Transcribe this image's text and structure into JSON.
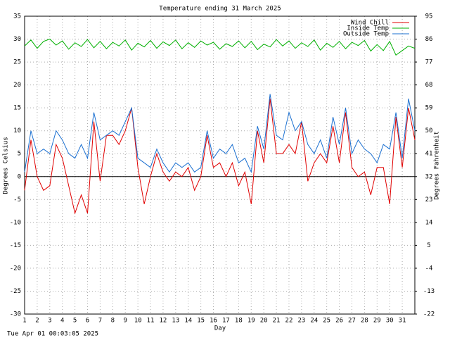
{
  "chart_data": {
    "type": "line",
    "title": "Temperature ending 31 March 2025",
    "x_label": "Day",
    "y_label": "Degrees Celsius",
    "y2_label": "Degrees Fahrenheit",
    "footer": "Tue Apr 01 00:03:05 2025",
    "x": [
      1,
      1.5,
      2,
      2.5,
      3,
      3.5,
      4,
      4.5,
      5,
      5.5,
      6,
      6.5,
      7,
      7.5,
      8,
      8.5,
      9,
      9.5,
      10,
      10.5,
      11,
      11.5,
      12,
      12.5,
      13,
      13.5,
      14,
      14.5,
      15,
      15.5,
      16,
      16.5,
      17,
      17.5,
      18,
      18.5,
      19,
      19.5,
      20,
      20.5,
      21,
      21.5,
      22,
      22.5,
      23,
      23.5,
      24,
      24.5,
      25,
      25.5,
      26,
      26.5,
      27,
      27.5,
      28,
      28.5,
      29,
      29.5,
      30,
      30.5,
      31,
      31.5,
      32
    ],
    "series": [
      {
        "name": "Wind Chill",
        "color": "#e00000",
        "values": [
          -3,
          8,
          0,
          -3,
          -2,
          7,
          4,
          -2,
          -8,
          -4,
          -8,
          12,
          -1,
          9,
          9,
          7,
          10,
          15,
          2,
          -6,
          0,
          5,
          1,
          -1,
          1,
          0,
          2,
          -3,
          0,
          9,
          2,
          3,
          0,
          3,
          -2,
          1,
          -6,
          10,
          3,
          17,
          5,
          5,
          7,
          5,
          12,
          -1,
          3,
          5,
          3,
          11,
          3,
          14,
          2,
          0,
          1,
          -4,
          2,
          2,
          -6,
          13,
          2,
          15,
          8
        ]
      },
      {
        "name": "Inside Temp",
        "color": "#00b000",
        "values": [
          28.5,
          29.8,
          28,
          29.5,
          30,
          28.7,
          29.6,
          27.8,
          29.2,
          28.4,
          29.9,
          28.1,
          29.5,
          27.9,
          29.3,
          28.5,
          29.8,
          27.6,
          29.1,
          28.3,
          29.7,
          28,
          29.4,
          28.6,
          29.8,
          27.9,
          29.2,
          28.2,
          29.6,
          28.7,
          29.3,
          27.8,
          29,
          28.4,
          29.6,
          28.1,
          29.5,
          27.7,
          28.9,
          28.3,
          29.9,
          28.5,
          29.6,
          28,
          29.2,
          28.4,
          29.8,
          27.6,
          29.1,
          28.2,
          29.5,
          27.9,
          29.3,
          28.6,
          29.7,
          27.4,
          28.8,
          27.5,
          29.5,
          26.5,
          27.5,
          28.5,
          28
        ]
      },
      {
        "name": "Outside Temp",
        "color": "#1a6fd0",
        "values": [
          1,
          10,
          5,
          6,
          5,
          10,
          8,
          5,
          4,
          7,
          4,
          14,
          8,
          9,
          10,
          9,
          12,
          15,
          4,
          3,
          2,
          6,
          3,
          1,
          3,
          2,
          3,
          1,
          2,
          10,
          4,
          6,
          5,
          7,
          3,
          4,
          1,
          11,
          6,
          18,
          9,
          8,
          14,
          10,
          12,
          7,
          5,
          8,
          4,
          13,
          7,
          15,
          5,
          8,
          6,
          5,
          3,
          7,
          6,
          14,
          4,
          17,
          10
        ]
      }
    ],
    "xlim": [
      1,
      32
    ],
    "xticks": [
      1,
      2,
      3,
      4,
      5,
      6,
      7,
      8,
      9,
      10,
      11,
      12,
      13,
      14,
      15,
      16,
      17,
      18,
      19,
      20,
      21,
      22,
      23,
      24,
      25,
      26,
      27,
      28,
      29,
      30,
      31
    ],
    "ylim": [
      -30,
      35
    ],
    "yticks": [
      -30,
      -25,
      -20,
      -15,
      -10,
      -5,
      0,
      5,
      10,
      15,
      20,
      25,
      30,
      35
    ],
    "y2lim": [
      -22,
      95
    ],
    "y2ticks": [
      -22,
      -13,
      -4,
      5,
      14,
      23,
      32,
      41,
      50,
      59,
      68,
      77,
      86,
      95
    ],
    "grid": true,
    "legend": "top-right"
  }
}
